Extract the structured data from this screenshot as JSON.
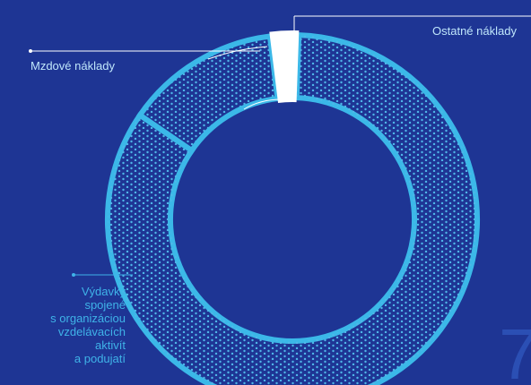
{
  "chart_data": {
    "type": "donut",
    "title": "",
    "series": [
      {
        "label": "Výdavky spojené s organizáciou vzdelávacích aktivít a podujatí",
        "value": 84.0,
        "color": "#1e3594",
        "pattern": "dots",
        "outline": "#3bb8e8"
      },
      {
        "label": "Mzdové náklady",
        "value": 13.5,
        "color": "#1e3594",
        "outline": "#3bb8e8"
      },
      {
        "label": "Ostatné náklady",
        "value": 2.5,
        "color": "#ffffff"
      }
    ],
    "legend": "callout labels"
  },
  "labels": {
    "mzdove": "Mzdové náklady",
    "ostatne": "Ostatné náklady",
    "vydavky": "Výdavky\nspojené\ns organizáciou\nvzdelávacích\naktivít\na podujatí"
  },
  "page_number": "7",
  "colors": {
    "background": "#1e3594",
    "outline": "#3bb8e8",
    "dots": "#4fb7e8",
    "callout_line": "#ffffff",
    "label_text": "#bfe6fb"
  }
}
